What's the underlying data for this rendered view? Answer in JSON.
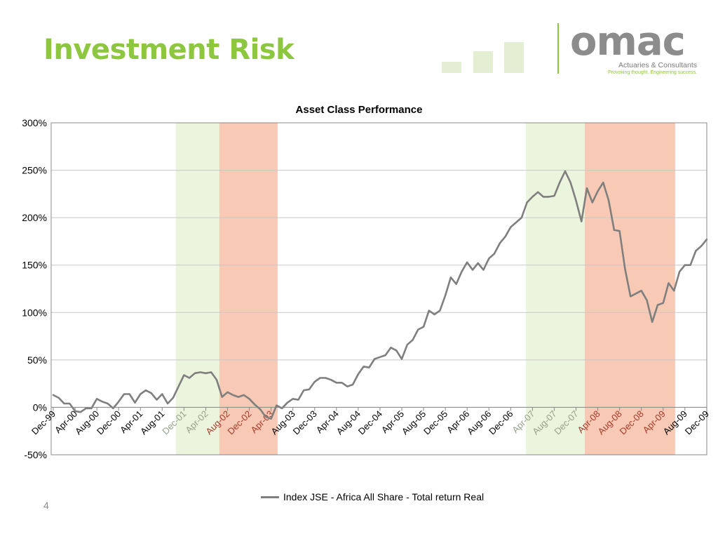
{
  "slide": {
    "title": "Investment Risk",
    "page_number": "4"
  },
  "logo": {
    "word": "omac",
    "subtitle": "Actuaries & Consultants",
    "tagline": "Provoking thought. Engineering success."
  },
  "colors": {
    "accent_green": "#8dc63f",
    "bull_band": "#ebf5dd",
    "bear_band": "#f8c9b5",
    "series_line": "#7f7f7f"
  },
  "chart_data": {
    "type": "line",
    "title": "Asset Class Performance",
    "xlabel": "",
    "ylabel": "",
    "ylim": [
      -0.5,
      3.0
    ],
    "y_ticks": [
      {
        "value": 3.0,
        "label": "300%"
      },
      {
        "value": 2.5,
        "label": "250%"
      },
      {
        "value": 2.0,
        "label": "200%"
      },
      {
        "value": 1.5,
        "label": "150%"
      },
      {
        "value": 1.0,
        "label": "100%"
      },
      {
        "value": 0.5,
        "label": "50%"
      },
      {
        "value": 0.0,
        "label": "0%"
      },
      {
        "value": -0.5,
        "label": "-50%"
      }
    ],
    "grid": true,
    "legend_position": "bottom",
    "x_ticks": [
      {
        "index": 0,
        "label": "Dec-99",
        "band": "none"
      },
      {
        "index": 4,
        "label": "Apr-00",
        "band": "none"
      },
      {
        "index": 8,
        "label": "Aug-00",
        "band": "none"
      },
      {
        "index": 12,
        "label": "Dec-00",
        "band": "none"
      },
      {
        "index": 16,
        "label": "Apr-01",
        "band": "none"
      },
      {
        "index": 20,
        "label": "Aug-01",
        "band": "none"
      },
      {
        "index": 24,
        "label": "Dec-01",
        "band": "bull"
      },
      {
        "index": 28,
        "label": "Apr-02",
        "band": "bull"
      },
      {
        "index": 32,
        "label": "Aug-02",
        "band": "bear"
      },
      {
        "index": 36,
        "label": "Dec-02",
        "band": "bear"
      },
      {
        "index": 40,
        "label": "Apr-03",
        "band": "bear"
      },
      {
        "index": 44,
        "label": "Aug-03",
        "band": "none"
      },
      {
        "index": 48,
        "label": "Dec-03",
        "band": "none"
      },
      {
        "index": 52,
        "label": "Apr-04",
        "band": "none"
      },
      {
        "index": 56,
        "label": "Aug-04",
        "band": "none"
      },
      {
        "index": 60,
        "label": "Dec-04",
        "band": "none"
      },
      {
        "index": 64,
        "label": "Apr-05",
        "band": "none"
      },
      {
        "index": 68,
        "label": "Aug-05",
        "band": "none"
      },
      {
        "index": 72,
        "label": "Dec-05",
        "band": "none"
      },
      {
        "index": 76,
        "label": "Apr-06",
        "band": "none"
      },
      {
        "index": 80,
        "label": "Aug-06",
        "band": "none"
      },
      {
        "index": 84,
        "label": "Dec-06",
        "band": "none"
      },
      {
        "index": 88,
        "label": "Apr-07",
        "band": "bull"
      },
      {
        "index": 92,
        "label": "Aug-07",
        "band": "bull"
      },
      {
        "index": 96,
        "label": "Dec-07",
        "band": "bull"
      },
      {
        "index": 100,
        "label": "Apr-08",
        "band": "bear"
      },
      {
        "index": 104,
        "label": "Aug-08",
        "band": "bear"
      },
      {
        "index": 108,
        "label": "Dec-08",
        "band": "bear"
      },
      {
        "index": 112,
        "label": "Apr-09",
        "band": "bear"
      },
      {
        "index": 116,
        "label": "Aug-09",
        "band": "none"
      },
      {
        "index": 120,
        "label": "Dec-09",
        "band": "none"
      }
    ],
    "bands": [
      {
        "type": "bull",
        "from": "Nov-01",
        "to": "Jul-02"
      },
      {
        "type": "bear",
        "from": "Jul-02",
        "to": "May-03"
      },
      {
        "type": "bull",
        "from": "Jan-07",
        "to": "Nov-07"
      },
      {
        "type": "bear",
        "from": "Nov-07",
        "to": "Apr-09"
      }
    ],
    "band_ranges": [
      {
        "type": "bull",
        "start": 22.5,
        "end": 30.5
      },
      {
        "type": "bear",
        "start": 30.5,
        "end": 41.2
      },
      {
        "type": "bull",
        "start": 86.8,
        "end": 97.6
      },
      {
        "type": "bear",
        "start": 97.6,
        "end": 114.2
      }
    ],
    "series": [
      {
        "name": "Index JSE - Africa All Share - Total return Real",
        "color": "#7f7f7f",
        "values": [
          0.13,
          0.1,
          0.04,
          0.04,
          -0.04,
          -0.05,
          -0.01,
          -0.01,
          0.09,
          0.06,
          0.04,
          -0.01,
          0.06,
          0.14,
          0.14,
          0.05,
          0.14,
          0.18,
          0.15,
          0.08,
          0.14,
          0.04,
          0.1,
          0.22,
          0.34,
          0.31,
          0.36,
          0.37,
          0.36,
          0.37,
          0.29,
          0.11,
          0.16,
          0.13,
          0.11,
          0.13,
          0.09,
          0.03,
          -0.02,
          -0.1,
          -0.12,
          0.02,
          -0.01,
          0.05,
          0.09,
          0.08,
          0.18,
          0.19,
          0.27,
          0.31,
          0.31,
          0.29,
          0.26,
          0.26,
          0.22,
          0.24,
          0.35,
          0.43,
          0.42,
          0.51,
          0.53,
          0.55,
          0.63,
          0.6,
          0.51,
          0.66,
          0.71,
          0.82,
          0.85,
          1.02,
          0.98,
          1.02,
          1.18,
          1.37,
          1.3,
          1.43,
          1.53,
          1.45,
          1.52,
          1.45,
          1.57,
          1.62,
          1.73,
          1.8,
          1.9,
          1.95,
          2.0,
          2.16,
          2.22,
          2.27,
          2.22,
          2.22,
          2.23,
          2.37,
          2.49,
          2.37,
          2.18,
          1.96,
          2.31,
          2.16,
          2.28,
          2.37,
          2.18,
          1.87,
          1.86,
          1.46,
          1.17,
          1.2,
          1.23,
          1.13,
          0.9,
          1.08,
          1.1,
          1.31,
          1.23,
          1.43,
          1.5,
          1.5,
          1.65,
          1.7,
          1.77
        ]
      }
    ]
  }
}
